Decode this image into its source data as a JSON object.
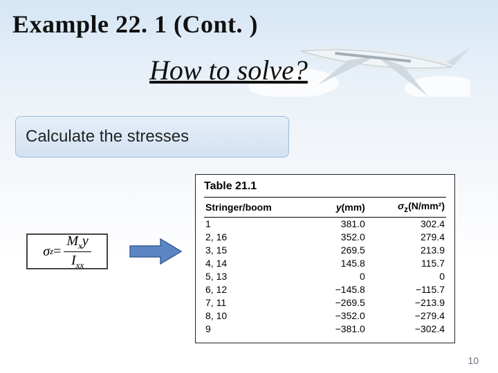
{
  "header": {
    "example_title": "Example 22. 1 (Cont. )",
    "subtitle": "How to solve?"
  },
  "pill_label": "Calculate the stresses",
  "formula": {
    "sigma_label": "σ",
    "sigma_sub": "z",
    "equals": " = ",
    "num_M": "M",
    "num_Msub": "x",
    "num_y": "y",
    "den_I": "I",
    "den_Isub": "xx"
  },
  "table": {
    "caption": "Table 21.1",
    "columns": {
      "c1": "Stringer/boom",
      "c2_var": "y",
      "c2_unit": "(mm)",
      "c3_var": "σ",
      "c3_sub": "z",
      "c3_unit": "(N/mm²)"
    },
    "rows": [
      {
        "label": "1",
        "y": "381.0",
        "sz": "302.4"
      },
      {
        "label": "2, 16",
        "y": "352.0",
        "sz": "279.4"
      },
      {
        "label": "3, 15",
        "y": "269.5",
        "sz": "213.9"
      },
      {
        "label": "4, 14",
        "y": "145.8",
        "sz": "115.7"
      },
      {
        "label": "5, 13",
        "y": "0",
        "sz": "0"
      },
      {
        "label": "6, 12",
        "y": "−145.8",
        "sz": "−115.7"
      },
      {
        "label": "7, 11",
        "y": "−269.5",
        "sz": "−213.9"
      },
      {
        "label": "8, 10",
        "y": "−352.0",
        "sz": "−279.4"
      },
      {
        "label": "9",
        "y": "−381.0",
        "sz": "−302.4"
      }
    ]
  },
  "arrow_fill": "#5a86c4",
  "arrow_stroke": "#3a5f94",
  "page_number": "10"
}
